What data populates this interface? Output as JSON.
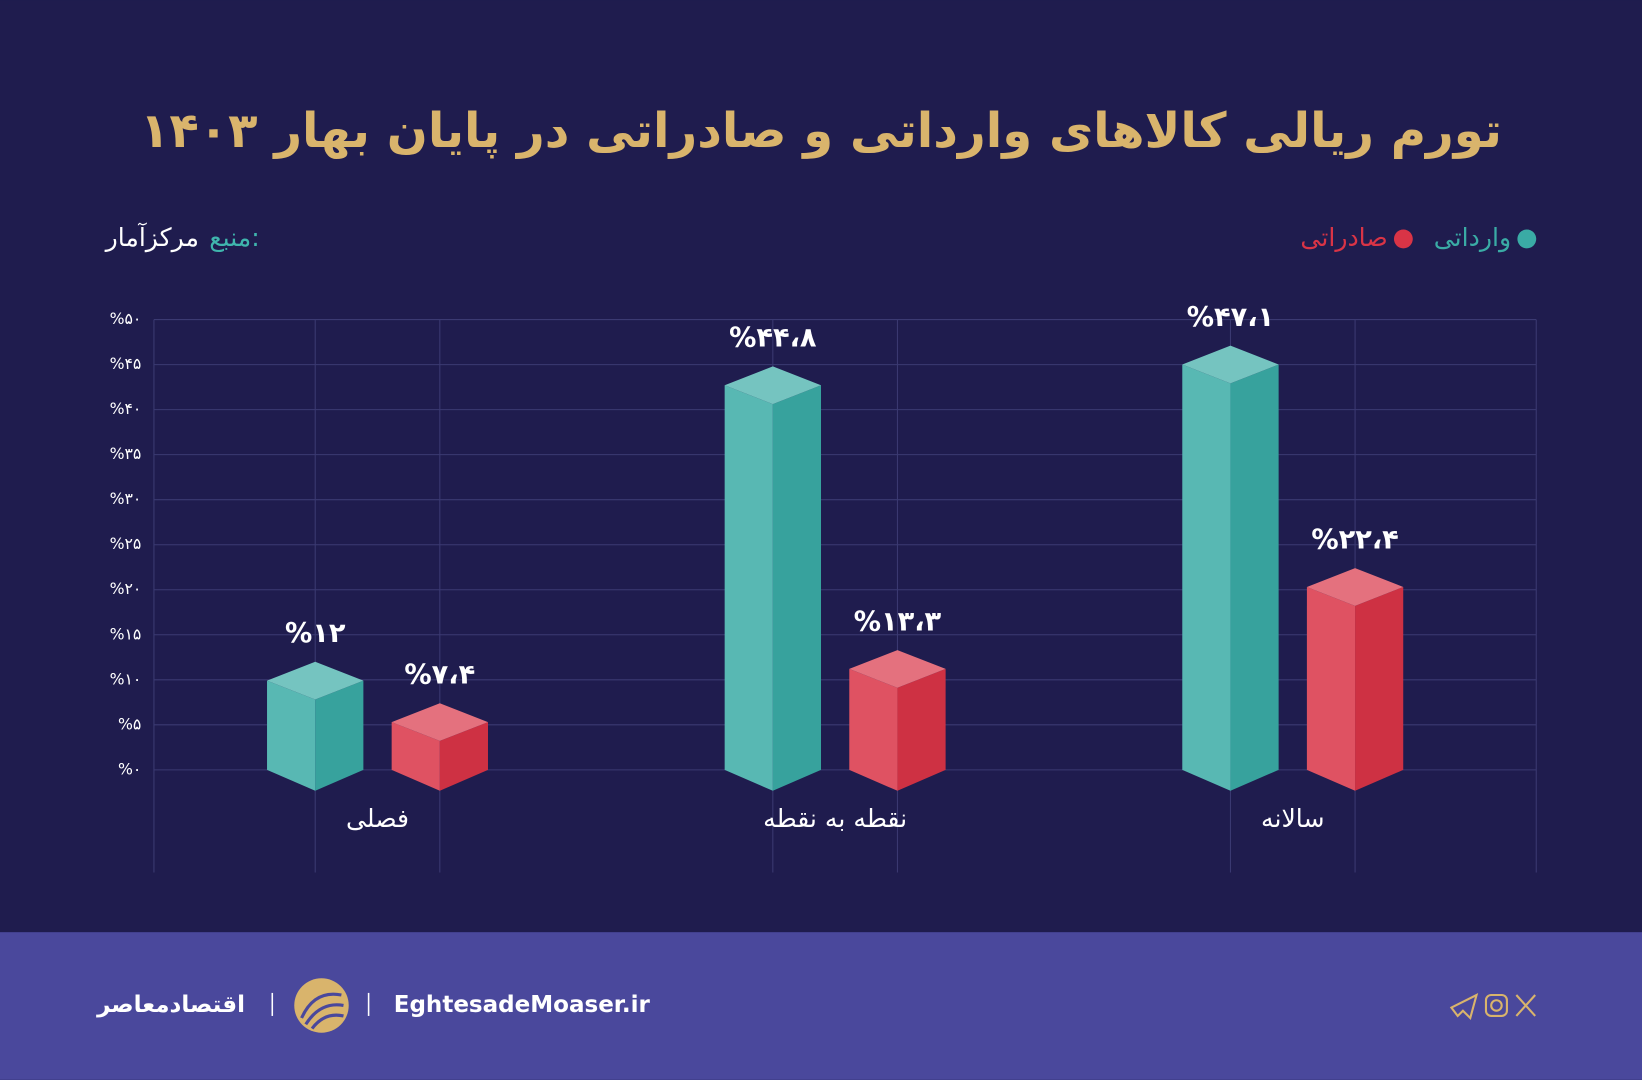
{
  "chart_data": {
    "type": "bar3d",
    "title": "تورم ریالی کالاهای وارداتی و صادراتی در پایان بهار ۱۴۰۳",
    "source_label": "منبع:",
    "source": "مرکزآمار",
    "categories": [
      "فصلی",
      "نقطه به نقطه",
      "سالانه"
    ],
    "series": [
      {
        "name": "وارداتی",
        "color": "#3aaba5",
        "values": [
          12,
          44.8,
          47.1
        ],
        "value_labels": [
          "%۱۲",
          "%۴۴،۸",
          "%۴۷،۱"
        ]
      },
      {
        "name": "صادراتی",
        "color": "#d93446",
        "values": [
          7.4,
          13.3,
          22.4
        ],
        "value_labels": [
          "%۷،۴",
          "%۱۳،۳",
          "%۲۲،۴"
        ]
      }
    ],
    "ylim": [
      0,
      50
    ],
    "yticks": [
      {
        "value": 0,
        "label": "%۰"
      },
      {
        "value": 5,
        "label": "%۵"
      },
      {
        "value": 10,
        "label": "%۱۰"
      },
      {
        "value": 15,
        "label": "%۱۵"
      },
      {
        "value": 20,
        "label": "%۲۰"
      },
      {
        "value": 25,
        "label": "%۲۵"
      },
      {
        "value": 30,
        "label": "%۳۰"
      },
      {
        "value": 35,
        "label": "%۳۵"
      },
      {
        "value": 40,
        "label": "%۴۰"
      },
      {
        "value": 45,
        "label": "%۴۵"
      },
      {
        "value": 50,
        "label": "%۵۰"
      }
    ],
    "grid": true
  },
  "footer": {
    "brand": "اقتصادمعاصر",
    "site": "EghtesadeMoaser.ir"
  }
}
